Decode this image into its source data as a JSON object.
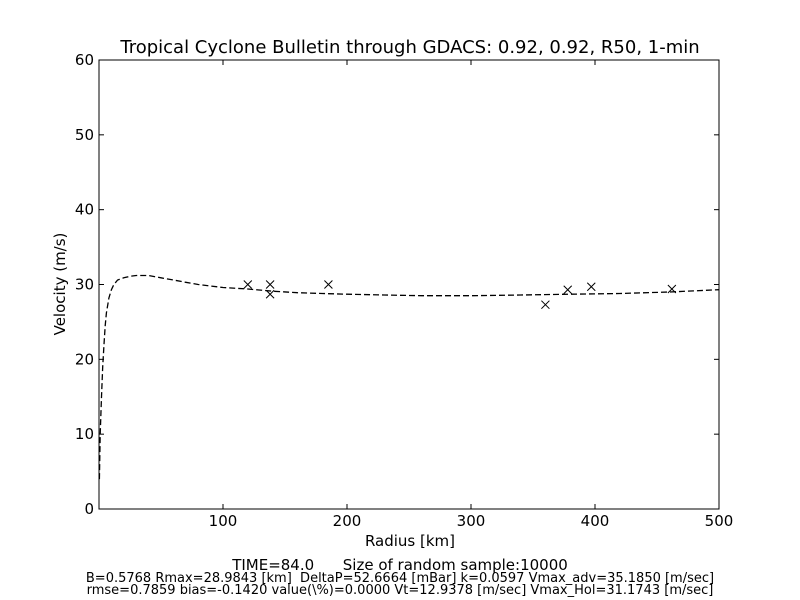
{
  "chart_data": {
    "type": "line",
    "title": "Tropical Cyclone Bulletin through GDACS: 0.92, 0.92, R50, 1-min",
    "xlabel": "Radius [km]",
    "ylabel": "Velocity (m/s)",
    "xlim": [
      0,
      500
    ],
    "ylim": [
      0,
      60
    ],
    "xticks": [
      100,
      200,
      300,
      400,
      500
    ],
    "yticks": [
      0,
      10,
      20,
      30,
      40,
      50,
      60
    ],
    "grid": false,
    "legend": "none",
    "series": [
      {
        "style": "dashed",
        "color": "#000000",
        "points": [
          [
            0.3,
            4
          ],
          [
            1,
            10
          ],
          [
            2,
            15
          ],
          [
            3,
            19
          ],
          [
            4,
            22
          ],
          [
            5,
            24.5
          ],
          [
            6,
            26.2
          ],
          [
            8,
            28.2
          ],
          [
            10,
            29.3
          ],
          [
            12,
            30
          ],
          [
            15,
            30.6
          ],
          [
            20,
            30.9
          ],
          [
            25,
            31.1
          ],
          [
            30,
            31.2
          ],
          [
            35,
            31.2
          ],
          [
            40,
            31.2
          ],
          [
            50,
            30.9
          ],
          [
            60,
            30.6
          ],
          [
            70,
            30.3
          ],
          [
            80,
            30
          ],
          [
            90,
            29.8
          ],
          [
            100,
            29.6
          ],
          [
            120,
            29.4
          ],
          [
            140,
            29.1
          ],
          [
            160,
            28.9
          ],
          [
            180,
            28.8
          ],
          [
            200,
            28.7
          ],
          [
            230,
            28.6
          ],
          [
            260,
            28.5
          ],
          [
            300,
            28.5
          ],
          [
            340,
            28.6
          ],
          [
            380,
            28.7
          ],
          [
            420,
            28.8
          ],
          [
            460,
            29
          ],
          [
            500,
            29.3
          ]
        ]
      },
      {
        "style": "markers",
        "marker": "x",
        "color": "#000000",
        "points": [
          [
            120,
            30
          ],
          [
            138,
            30
          ],
          [
            138,
            28.7
          ],
          [
            185,
            30
          ],
          [
            360,
            27.3
          ],
          [
            378,
            29.3
          ],
          [
            397,
            29.7
          ],
          [
            462,
            29.4
          ]
        ]
      }
    ],
    "footer_lines": [
      "TIME=84.0      Size of random sample:10000",
      "B=0.5768 Rmax=28.9843 [km]  DeltaP=52.6664 [mBar] k=0.0597 Vmax_adv=35.1850 [m/sec]",
      "rmse=0.7859 bias=-0.1420 value(\\%)=0.0000 Vt=12.9378 [m/sec] Vmax_Hol=31.1743 [m/sec]"
    ]
  }
}
